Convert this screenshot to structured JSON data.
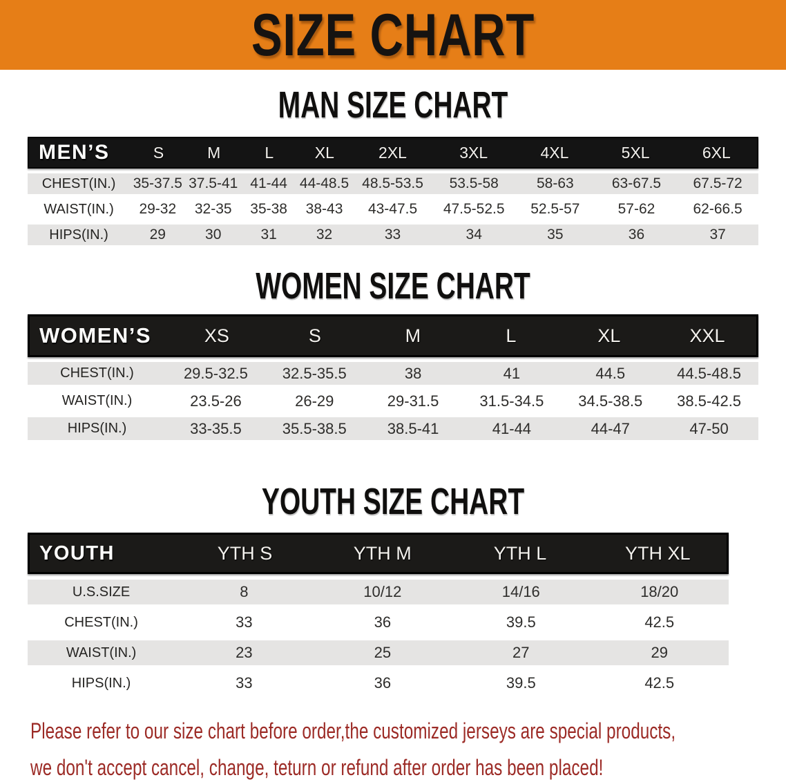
{
  "banner": {
    "title": "SIZE CHART",
    "bg_color": "#E67E17"
  },
  "colors": {
    "header_bar": "#1B1A18",
    "row_gray": "#E5E4E3",
    "notice_red": "#9C2B26"
  },
  "sections": {
    "men": {
      "heading": "MAN SIZE CHART",
      "corner": "MEN’S",
      "columns": [
        "S",
        "M",
        "L",
        "XL",
        "2XL",
        "3XL",
        "4XL",
        "5XL",
        "6XL"
      ],
      "rows": [
        {
          "label": "CHEST(IN.)",
          "values": [
            "35-37.5",
            "37.5-41",
            "41-44",
            "44-48.5",
            "48.5-53.5",
            "53.5-58",
            "58-63",
            "63-67.5",
            "67.5-72"
          ]
        },
        {
          "label": "WAIST(IN.)",
          "values": [
            "29-32",
            "32-35",
            "35-38",
            "38-43",
            "43-47.5",
            "47.5-52.5",
            "52.5-57",
            "57-62",
            "62-66.5"
          ]
        },
        {
          "label": "HIPS(IN.)",
          "values": [
            "29",
            "30",
            "31",
            "32",
            "33",
            "34",
            "35",
            "36",
            "37"
          ]
        }
      ]
    },
    "women": {
      "heading": "WOMEN SIZE CHART",
      "corner": "WOMEN’S",
      "columns": [
        "XS",
        "S",
        "M",
        "L",
        "XL",
        "XXL"
      ],
      "rows": [
        {
          "label": "CHEST(IN.)",
          "values": [
            "29.5-32.5",
            "32.5-35.5",
            "38",
            "41",
            "44.5",
            "44.5-48.5"
          ]
        },
        {
          "label": "WAIST(IN.)",
          "values": [
            "23.5-26",
            "26-29",
            "29-31.5",
            "31.5-34.5",
            "34.5-38.5",
            "38.5-42.5"
          ]
        },
        {
          "label": "HIPS(IN.)",
          "values": [
            "33-35.5",
            "35.5-38.5",
            "38.5-41",
            "41-44",
            "44-47",
            "47-50"
          ]
        }
      ]
    },
    "youth": {
      "heading": "YOUTH SIZE CHART",
      "corner": "YOUTH",
      "columns": [
        "YTH S",
        "YTH M",
        "YTH L",
        "YTH XL"
      ],
      "rows": [
        {
          "label": "U.S.SIZE",
          "values": [
            "8",
            "10/12",
            "14/16",
            "18/20"
          ]
        },
        {
          "label": "CHEST(IN.)",
          "values": [
            "33",
            "36",
            "39.5",
            "42.5"
          ]
        },
        {
          "label": "WAIST(IN.)",
          "values": [
            "23",
            "25",
            "27",
            "29"
          ]
        },
        {
          "label": "HIPS(IN.)",
          "values": [
            "33",
            "36",
            "39.5",
            "42.5"
          ]
        }
      ]
    }
  },
  "footer": {
    "line1": "Please refer to our size chart before order,the customized jerseys are special products,",
    "line2": "we don't accept cancel, change, teturn or refund after order has been placed!"
  }
}
